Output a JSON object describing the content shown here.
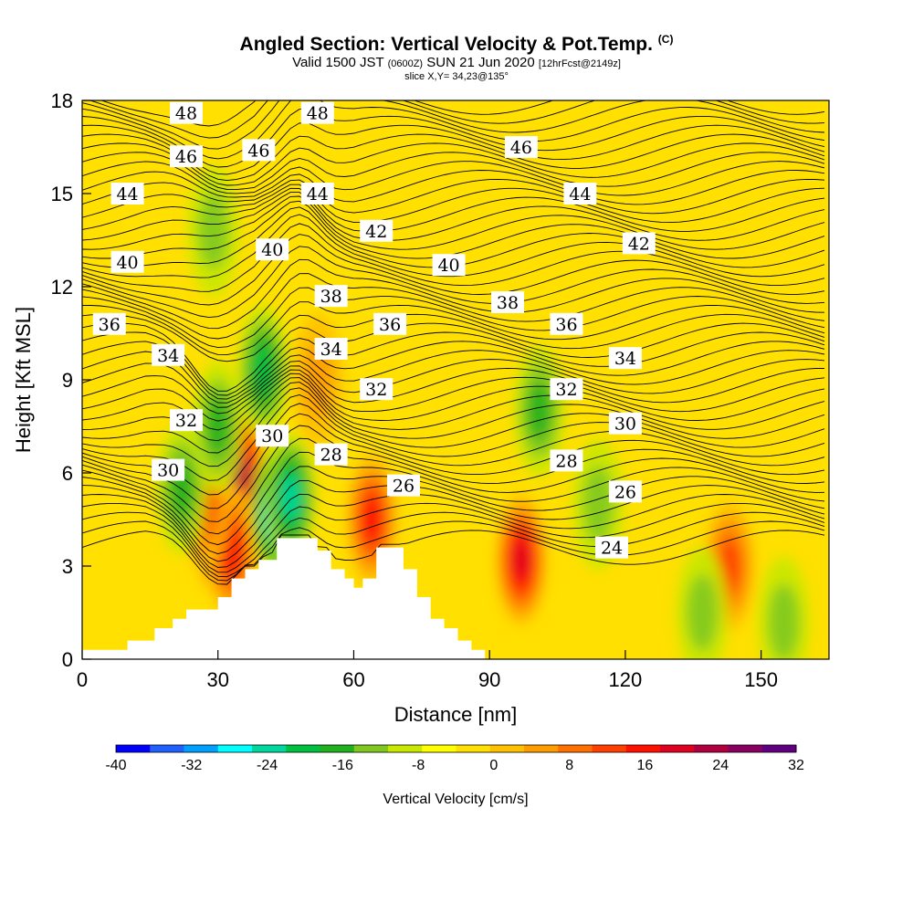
{
  "header": {
    "title": "Angled Section: Vertical Velocity & Pot.Temp.",
    "title_mark": "(C)",
    "valid_prefix": "Valid 1500 JST",
    "valid_utc": "(0600Z)",
    "valid_date": "SUN 21 Jun 2020",
    "valid_fcst": "[12hrFcst@2149z]",
    "slice": "slice X,Y= 34,23@135°"
  },
  "chart_data": {
    "type": "heatmap",
    "xlabel": "Distance [nm]",
    "ylabel": "Height [Kft MSL]",
    "xlim": [
      0,
      165
    ],
    "ylim": [
      0,
      18
    ],
    "x_ticks": [
      "0",
      "30",
      "60",
      "90",
      "120",
      "150"
    ],
    "y_ticks": [
      "0",
      "3",
      "6",
      "9",
      "12",
      "15",
      "18"
    ],
    "x_tick_values": [
      0,
      30,
      60,
      90,
      120,
      150
    ],
    "y_tick_values": [
      0,
      3,
      6,
      9,
      12,
      15,
      18
    ],
    "colorbar": {
      "label": "Vertical Velocity [cm/s]",
      "tick_labels": [
        "-40",
        "-32",
        "-24",
        "-16",
        "-8",
        "0",
        "8",
        "16",
        "24",
        "32"
      ],
      "tick_values": [
        -40,
        -32,
        -24,
        -16,
        -8,
        0,
        8,
        16,
        24,
        32
      ],
      "colors": [
        "#0000ff",
        "#2060ff",
        "#00a0ff",
        "#00ffff",
        "#00d8a0",
        "#00c040",
        "#20b020",
        "#80c820",
        "#c8e800",
        "#ffff00",
        "#ffe000",
        "#ffc000",
        "#ff9c00",
        "#ff7000",
        "#ff4000",
        "#ff1000",
        "#e00020",
        "#b00040",
        "#880060",
        "#600080"
      ]
    },
    "terrain_profile": [
      {
        "x": 0,
        "z": 0.3
      },
      {
        "x": 10,
        "z": 0.3
      },
      {
        "x": 10,
        "z": 0.6
      },
      {
        "x": 16,
        "z": 0.6
      },
      {
        "x": 16,
        "z": 1.0
      },
      {
        "x": 20,
        "z": 1.0
      },
      {
        "x": 20,
        "z": 1.3
      },
      {
        "x": 23,
        "z": 1.3
      },
      {
        "x": 23,
        "z": 1.6
      },
      {
        "x": 30,
        "z": 1.6
      },
      {
        "x": 30,
        "z": 2.0
      },
      {
        "x": 33,
        "z": 2.0
      },
      {
        "x": 33,
        "z": 2.6
      },
      {
        "x": 36,
        "z": 2.6
      },
      {
        "x": 36,
        "z": 2.9
      },
      {
        "x": 39,
        "z": 2.9
      },
      {
        "x": 39,
        "z": 3.2
      },
      {
        "x": 43,
        "z": 3.2
      },
      {
        "x": 43,
        "z": 3.9
      },
      {
        "x": 52,
        "z": 3.9
      },
      {
        "x": 52,
        "z": 3.5
      },
      {
        "x": 55,
        "z": 3.5
      },
      {
        "x": 55,
        "z": 2.9
      },
      {
        "x": 58,
        "z": 2.9
      },
      {
        "x": 58,
        "z": 2.6
      },
      {
        "x": 60,
        "z": 2.6
      },
      {
        "x": 60,
        "z": 2.3
      },
      {
        "x": 62,
        "z": 2.3
      },
      {
        "x": 62,
        "z": 2.6
      },
      {
        "x": 65,
        "z": 2.6
      },
      {
        "x": 65,
        "z": 3.6
      },
      {
        "x": 71,
        "z": 3.6
      },
      {
        "x": 71,
        "z": 2.9
      },
      {
        "x": 74,
        "z": 2.9
      },
      {
        "x": 74,
        "z": 2.0
      },
      {
        "x": 77,
        "z": 2.0
      },
      {
        "x": 77,
        "z": 1.3
      },
      {
        "x": 80,
        "z": 1.3
      },
      {
        "x": 80,
        "z": 1.0
      },
      {
        "x": 83,
        "z": 1.0
      },
      {
        "x": 83,
        "z": 0.6
      },
      {
        "x": 86,
        "z": 0.6
      },
      {
        "x": 86,
        "z": 0.3
      },
      {
        "x": 89,
        "z": 0.3
      },
      {
        "x": 89,
        "z": 0
      }
    ],
    "velocity_features": [
      {
        "x": 30,
        "z": 4.2,
        "w": 32
      },
      {
        "x": 35,
        "z": 6.0,
        "w": 26
      },
      {
        "x": 33,
        "z": 3.5,
        "w": 18
      },
      {
        "x": 27,
        "z": 5.0,
        "w": 16
      },
      {
        "x": 97,
        "z": 3.2,
        "w": 24
      },
      {
        "x": 64,
        "z": 4.5,
        "w": 20
      },
      {
        "x": 143,
        "z": 3.0,
        "w": 16
      },
      {
        "x": 52,
        "z": 9.0,
        "w": 8
      },
      {
        "x": 43,
        "z": 4.8,
        "w": -32
      },
      {
        "x": 46,
        "z": 5.2,
        "w": -20
      },
      {
        "x": 40,
        "z": 9.3,
        "w": -16
      },
      {
        "x": 22,
        "z": 5.5,
        "w": -12
      },
      {
        "x": 30,
        "z": 7.5,
        "w": -10
      },
      {
        "x": 101,
        "z": 8.0,
        "w": -10
      },
      {
        "x": 114,
        "z": 5.0,
        "w": -8
      },
      {
        "x": 137,
        "z": 1.5,
        "w": -8
      },
      {
        "x": 155,
        "z": 1.2,
        "w": -8
      },
      {
        "x": 29,
        "z": 13.8,
        "w": -6
      }
    ],
    "theta_contour_labels": [
      {
        "x": 23,
        "z": 17.6,
        "value": "48"
      },
      {
        "x": 52,
        "z": 17.6,
        "value": "48"
      },
      {
        "x": 23,
        "z": 16.2,
        "value": "46"
      },
      {
        "x": 39,
        "z": 16.4,
        "value": "46"
      },
      {
        "x": 97,
        "z": 16.5,
        "value": "46"
      },
      {
        "x": 10,
        "z": 15.0,
        "value": "44"
      },
      {
        "x": 52,
        "z": 15.0,
        "value": "44"
      },
      {
        "x": 110,
        "z": 15.0,
        "value": "44"
      },
      {
        "x": 65,
        "z": 13.8,
        "value": "42"
      },
      {
        "x": 123,
        "z": 13.4,
        "value": "42"
      },
      {
        "x": 10,
        "z": 12.8,
        "value": "40"
      },
      {
        "x": 42,
        "z": 13.2,
        "value": "40"
      },
      {
        "x": 81,
        "z": 12.7,
        "value": "40"
      },
      {
        "x": 55,
        "z": 11.7,
        "value": "38"
      },
      {
        "x": 94,
        "z": 11.5,
        "value": "38"
      },
      {
        "x": 6,
        "z": 10.8,
        "value": "36"
      },
      {
        "x": 68,
        "z": 10.8,
        "value": "36"
      },
      {
        "x": 107,
        "z": 10.8,
        "value": "36"
      },
      {
        "x": 19,
        "z": 9.8,
        "value": "34"
      },
      {
        "x": 55,
        "z": 10.0,
        "value": "34"
      },
      {
        "x": 120,
        "z": 9.7,
        "value": "34"
      },
      {
        "x": 65,
        "z": 8.7,
        "value": "32"
      },
      {
        "x": 107,
        "z": 8.7,
        "value": "32"
      },
      {
        "x": 23,
        "z": 7.7,
        "value": "32"
      },
      {
        "x": 42,
        "z": 7.2,
        "value": "30"
      },
      {
        "x": 19,
        "z": 6.1,
        "value": "30"
      },
      {
        "x": 120,
        "z": 7.6,
        "value": "30"
      },
      {
        "x": 55,
        "z": 6.6,
        "value": "28"
      },
      {
        "x": 107,
        "z": 6.4,
        "value": "28"
      },
      {
        "x": 71,
        "z": 5.6,
        "value": "26"
      },
      {
        "x": 120,
        "z": 5.4,
        "value": "26"
      },
      {
        "x": 117,
        "z": 3.6,
        "value": "24"
      }
    ]
  }
}
